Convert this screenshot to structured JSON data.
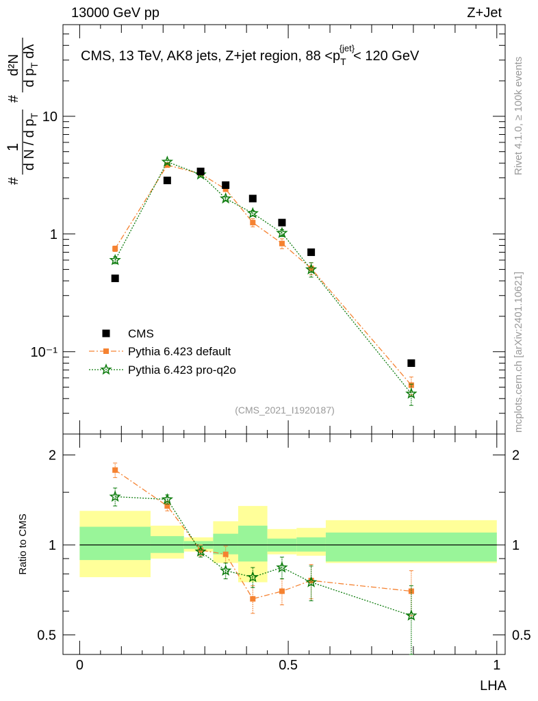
{
  "header": {
    "left": "13000 GeV pp",
    "right": "Z+Jet"
  },
  "side_labels": {
    "rivet": "Rivet 4.1.0, ≥ 100k events",
    "mcplots": "mcplots.cern.ch [arXiv:2401.10621]"
  },
  "colors": {
    "cms": "#000000",
    "default": "#f58231",
    "proq2o": "#0a7a0a",
    "band_inner": "#99f599",
    "band_outer": "#ffff99"
  },
  "chart_data": [
    {
      "type": "scatter",
      "title": "CMS, 13 TeV, AK8 jets, Z+jet region, 88 <p_T^{jet}< 120 GeV",
      "ylabel": "1/(dN/dpT) d²N/(dpT dλ)",
      "yscale": "log",
      "ylim": [
        0.02,
        60
      ],
      "xlim": [
        -0.04,
        1.02
      ],
      "yticks": [
        {
          "value": 0.1,
          "label": "10⁻¹"
        },
        {
          "value": 1,
          "label": "1"
        },
        {
          "value": 10,
          "label": "10"
        }
      ],
      "watermark": "(CMS_2021_I1920187)",
      "legend": {
        "position": "bottom-left",
        "entries": [
          "CMS",
          "Pythia 6.423 default",
          "Pythia 6.423 pro-q2o"
        ]
      },
      "series": [
        {
          "name": "CMS",
          "marker": "square",
          "x": [
            0.085,
            0.21,
            0.29,
            0.35,
            0.415,
            0.485,
            0.555,
            0.795
          ],
          "y": [
            0.42,
            2.85,
            3.4,
            2.6,
            2.0,
            1.25,
            0.7,
            0.08
          ]
        },
        {
          "name": "Pythia 6.423 default",
          "marker": "filled-square",
          "x": [
            0.085,
            0.21,
            0.29,
            0.35,
            0.415,
            0.485,
            0.555,
            0.795
          ],
          "y": [
            0.75,
            3.85,
            3.25,
            2.4,
            1.25,
            0.83,
            0.51,
            0.052
          ],
          "yerr": [
            0.04,
            0.1,
            0.08,
            0.08,
            0.1,
            0.08,
            0.06,
            0.009
          ]
        },
        {
          "name": "Pythia 6.423 pro-q2o",
          "marker": "star",
          "x": [
            0.085,
            0.21,
            0.29,
            0.35,
            0.415,
            0.485,
            0.555,
            0.795
          ],
          "y": [
            0.6,
            4.1,
            3.2,
            2.0,
            1.5,
            1.02,
            0.5,
            0.044
          ],
          "yerr": [
            0.04,
            0.12,
            0.08,
            0.07,
            0.08,
            0.07,
            0.07,
            0.009
          ]
        }
      ]
    },
    {
      "type": "scatter",
      "xlabel": "LHA",
      "ylabel": "Ratio to CMS",
      "yscale": "log",
      "ylim": [
        0.43,
        2.35
      ],
      "xlim": [
        -0.04,
        1.02
      ],
      "xticks": [
        {
          "value": 0,
          "label": "0"
        },
        {
          "value": 0.5,
          "label": "0.5"
        },
        {
          "value": 1,
          "label": "1"
        }
      ],
      "yticks": [
        {
          "value": 0.5,
          "label": "0.5"
        },
        {
          "value": 1,
          "label": "1"
        },
        {
          "value": 2,
          "label": "2"
        }
      ],
      "reference_line": 1,
      "bands": {
        "edges": [
          0,
          0.17,
          0.25,
          0.32,
          0.38,
          0.45,
          0.52,
          0.59,
          1.0
        ],
        "inner_lo": [
          0.89,
          0.94,
          0.97,
          0.93,
          0.88,
          0.95,
          0.95,
          0.88
        ],
        "inner_hi": [
          1.15,
          1.07,
          1.03,
          1.09,
          1.16,
          1.05,
          1.06,
          1.1
        ],
        "outer_lo": [
          0.78,
          0.9,
          0.95,
          0.87,
          0.75,
          0.93,
          0.92,
          0.87
        ],
        "outer_hi": [
          1.3,
          1.16,
          1.06,
          1.2,
          1.35,
          1.13,
          1.14,
          1.21
        ]
      },
      "series": [
        {
          "name": "Pythia 6.423 default",
          "x": [
            0.085,
            0.21,
            0.29,
            0.35,
            0.415,
            0.485,
            0.555,
            0.795
          ],
          "y": [
            1.78,
            1.35,
            0.96,
            0.93,
            0.66,
            0.7,
            0.76,
            0.7
          ],
          "yerr": [
            0.1,
            0.05,
            0.04,
            0.06,
            0.07,
            0.07,
            0.1,
            0.12
          ]
        },
        {
          "name": "Pythia 6.423 pro-q2o",
          "x": [
            0.085,
            0.21,
            0.29,
            0.35,
            0.415,
            0.485,
            0.555,
            0.795
          ],
          "y": [
            1.45,
            1.42,
            0.95,
            0.82,
            0.78,
            0.84,
            0.75,
            0.58
          ],
          "yerr": [
            0.1,
            0.05,
            0.04,
            0.05,
            0.06,
            0.07,
            0.1,
            0.15
          ]
        }
      ]
    }
  ]
}
